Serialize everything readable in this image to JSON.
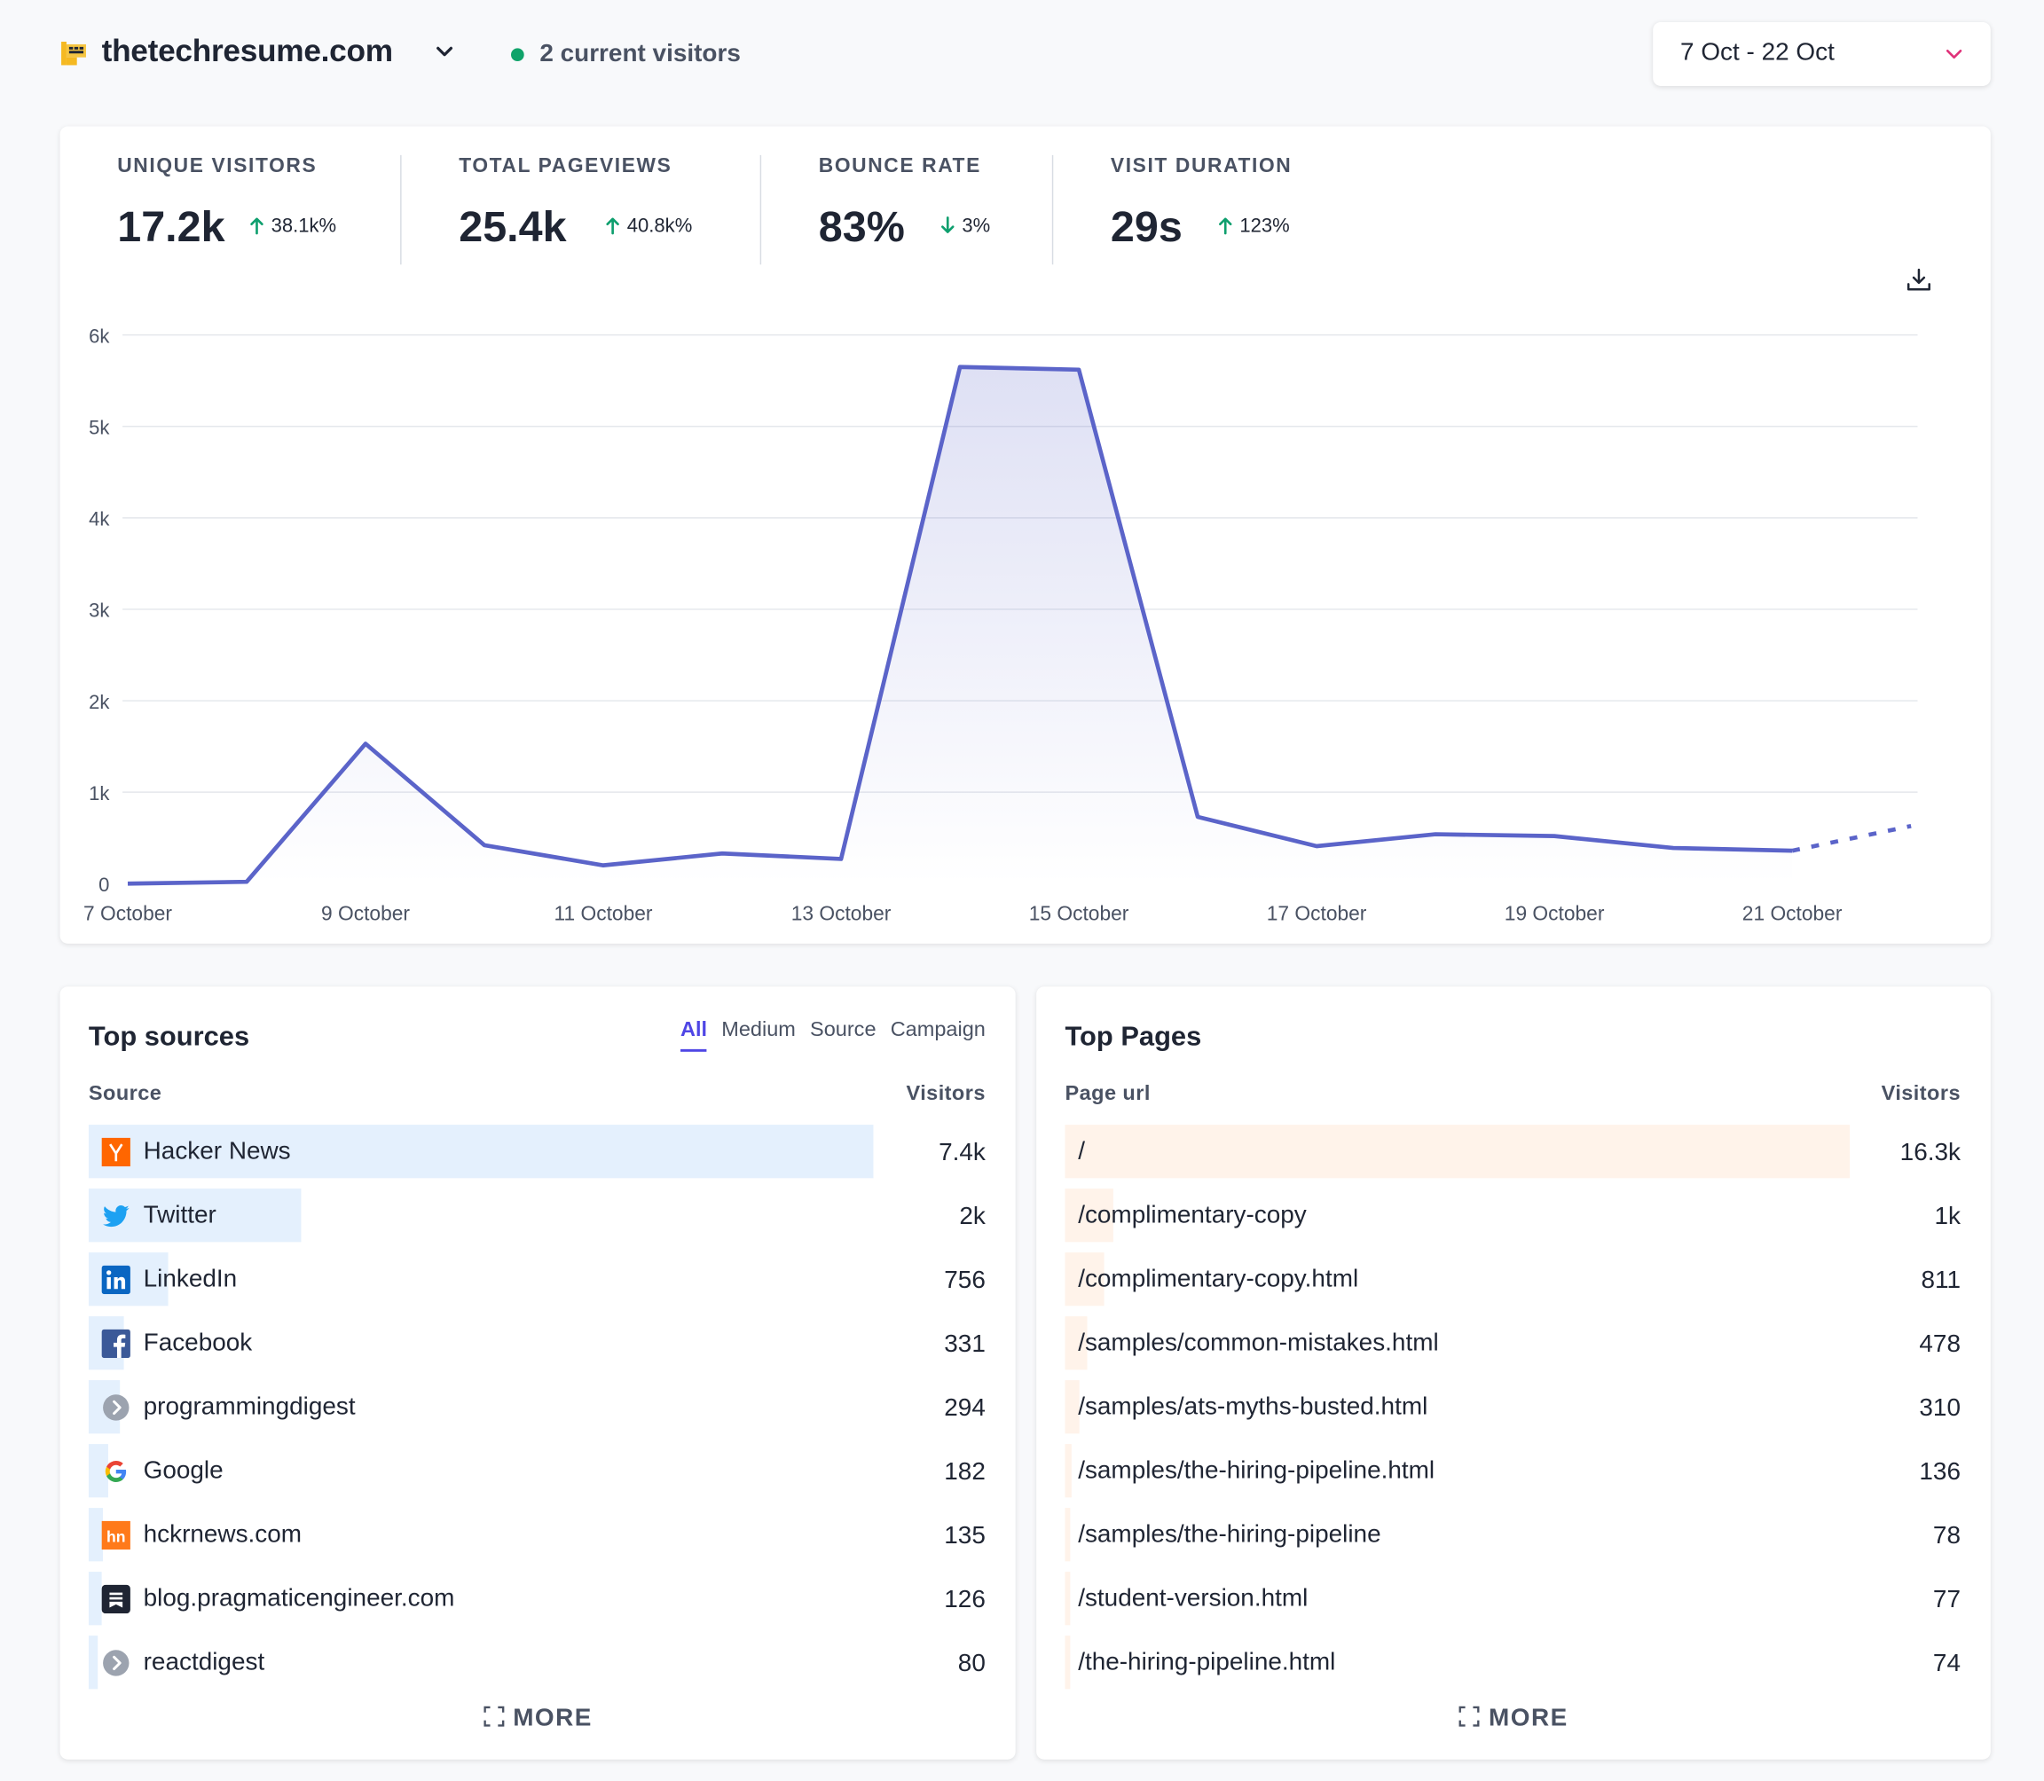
{
  "header": {
    "site_name": "thetechresume.com",
    "current_visitors": "2 current visitors",
    "date_range": "7 Oct - 22 Oct"
  },
  "stats": [
    {
      "label": "UNIQUE VISITORS",
      "value": "17.2k",
      "change": "38.1k%",
      "direction": "up"
    },
    {
      "label": "TOTAL PAGEVIEWS",
      "value": "25.4k",
      "change": "40.8k%",
      "direction": "up"
    },
    {
      "label": "BOUNCE RATE",
      "value": "83%",
      "change": "3%",
      "direction": "down"
    },
    {
      "label": "VISIT DURATION",
      "value": "29s",
      "change": "123%",
      "direction": "up"
    }
  ],
  "colors": {
    "accent": "#5b64c9",
    "up": "#0e9f6e",
    "down": "#0e9f6e",
    "source_bar": "#e4f0fd",
    "page_bar": "#fff3ea",
    "date_caret": "#e0337a"
  },
  "chart_data": {
    "type": "line",
    "y_ticks": [
      "0",
      "1k",
      "2k",
      "3k",
      "4k",
      "5k",
      "6k"
    ],
    "ylim": [
      0,
      6000
    ],
    "x_labels": [
      "7 October",
      "9 October",
      "11 October",
      "13 October",
      "15 October",
      "17 October",
      "19 October",
      "21 October"
    ],
    "series": [
      {
        "x": [
          "7 Oct",
          "8 Oct",
          "9 Oct",
          "10 Oct",
          "11 Oct",
          "12 Oct",
          "13 Oct",
          "14 Oct",
          "15 Oct",
          "16 Oct",
          "17 Oct",
          "18 Oct",
          "19 Oct",
          "20 Oct",
          "21 Oct",
          "22 Oct"
        ],
        "values": [
          0,
          20,
          1530,
          420,
          200,
          330,
          270,
          5650,
          5620,
          730,
          410,
          540,
          520,
          390,
          360,
          630
        ],
        "partial_from_index": 14
      }
    ],
    "grid": true
  },
  "icons": {
    "download": "download-icon",
    "more": "expand-icon"
  },
  "sources": {
    "title": "Top sources",
    "tabs": [
      "All",
      "Medium",
      "Source",
      "Campaign"
    ],
    "active_tab": "All",
    "col_source": "Source",
    "col_visitors": "Visitors",
    "rows": [
      {
        "name": "Hacker News",
        "visitors": "7.4k",
        "share": 1.0,
        "icon": "hacker-news-icon"
      },
      {
        "name": "Twitter",
        "visitors": "2k",
        "share": 0.27,
        "icon": "twitter-icon"
      },
      {
        "name": "LinkedIn",
        "visitors": "756",
        "share": 0.102,
        "icon": "linkedin-icon"
      },
      {
        "name": "Facebook",
        "visitors": "331",
        "share": 0.045,
        "icon": "facebook-icon"
      },
      {
        "name": "programmingdigest",
        "visitors": "294",
        "share": 0.04,
        "icon": "link-icon"
      },
      {
        "name": "Google",
        "visitors": "182",
        "share": 0.025,
        "icon": "google-icon"
      },
      {
        "name": "hckrnews.com",
        "visitors": "135",
        "share": 0.018,
        "icon": "hckrnews-icon"
      },
      {
        "name": "blog.pragmaticengineer.com",
        "visitors": "126",
        "share": 0.017,
        "icon": "substack-icon"
      },
      {
        "name": "reactdigest",
        "visitors": "80",
        "share": 0.011,
        "icon": "link-icon"
      }
    ],
    "more": "MORE"
  },
  "pages": {
    "title": "Top Pages",
    "col_page": "Page url",
    "col_visitors": "Visitors",
    "rows": [
      {
        "url": "/",
        "visitors": "16.3k",
        "share": 1.0
      },
      {
        "url": "/complimentary-copy",
        "visitors": "1k",
        "share": 0.061
      },
      {
        "url": "/complimentary-copy.html",
        "visitors": "811",
        "share": 0.05
      },
      {
        "url": "/samples/common-mistakes.html",
        "visitors": "478",
        "share": 0.029
      },
      {
        "url": "/samples/ats-myths-busted.html",
        "visitors": "310",
        "share": 0.019
      },
      {
        "url": "/samples/the-hiring-pipeline.html",
        "visitors": "136",
        "share": 0.008
      },
      {
        "url": "/samples/the-hiring-pipeline",
        "visitors": "78",
        "share": 0.005
      },
      {
        "url": "/student-version.html",
        "visitors": "77",
        "share": 0.005
      },
      {
        "url": "/the-hiring-pipeline.html",
        "visitors": "74",
        "share": 0.005
      }
    ],
    "more": "MORE"
  }
}
